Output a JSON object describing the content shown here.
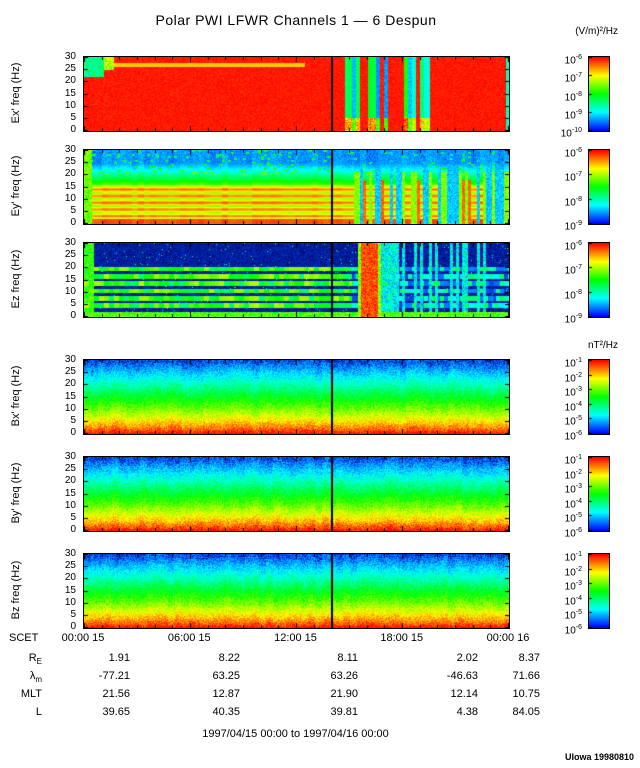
{
  "credit": "UIowa 19980810",
  "chart_data": {
    "type": "heatmap",
    "title": "Polar PWI LFWR Channels 1 — 6 Despun",
    "time_range_label": "1997/04/15 00:00 to 1997/04/16 00:00",
    "colormap": "rainbow blue=low red=high",
    "x_axis": {
      "name": "SCET",
      "tick_labels": [
        "00:00 15",
        "06:00 15",
        "12:00 15",
        "18:00 15",
        "00:00 16"
      ],
      "tick_hours": [
        0,
        6,
        12,
        18,
        24
      ],
      "minor_tick_interval_hours": 1,
      "range_hours": [
        0,
        24
      ]
    },
    "y_axis": {
      "ticks": [
        0,
        5,
        10,
        15,
        20,
        25,
        30
      ],
      "range": [
        0,
        30
      ],
      "unit": "Hz"
    },
    "marker_line_hour": 14,
    "unit_headers": {
      "electric": "(V/m)²/Hz",
      "magnetic": "nT²/Hz"
    },
    "panels": [
      {
        "id": "ex",
        "ylabel": "Ex' freq (Hz)",
        "units": "(V/m)²/Hz",
        "cbar_exponents": [
          -6,
          -7,
          -8,
          -9,
          -10
        ],
        "pattern": "efield-saturated",
        "description": "saturated intense broadband electric field, dropouts ~15:00-19:30"
      },
      {
        "id": "ey",
        "ylabel": "Ey' freq (Hz)",
        "units": "(V/m)²/Hz",
        "cbar_exponents": [
          -6,
          -7,
          -8,
          -9
        ],
        "pattern": "efield-banded",
        "description": "intense low-frequency band with striations, weaker above 20 Hz"
      },
      {
        "id": "ez",
        "ylabel": "Ez freq (Hz)",
        "units": "(V/m)²/Hz",
        "cbar_exponents": [
          -6,
          -7,
          -8,
          -9
        ],
        "pattern": "efield-lines",
        "description": "narrowband harmonic lines ~3 Hz spacing on weak background, intense burst ~16:30"
      },
      {
        "id": "bx",
        "ylabel": "Bx' freq (Hz)",
        "units": "nT²/Hz",
        "cbar_exponents": [
          -1,
          -2,
          -3,
          -4,
          -5,
          -6
        ],
        "pattern": "bfield",
        "description": "magnetic spectrum falling with frequency"
      },
      {
        "id": "by",
        "ylabel": "By' freq (Hz)",
        "units": "nT²/Hz",
        "cbar_exponents": [
          -1,
          -2,
          -3,
          -4,
          -5,
          -6
        ],
        "pattern": "bfield",
        "description": "magnetic spectrum falling with frequency"
      },
      {
        "id": "bz",
        "ylabel": "Bz freq (Hz)",
        "units": "nT²/Hz",
        "cbar_exponents": [
          -1,
          -2,
          -3,
          -4,
          -5,
          -6
        ],
        "pattern": "bfield",
        "description": "magnetic spectrum falling with frequency"
      }
    ],
    "ephemeris": {
      "rows": [
        {
          "label": "R",
          "sub": "E",
          "values": [
            "1.91",
            "8.22",
            "8.11",
            "2.02",
            "8.37"
          ]
        },
        {
          "label": "λ",
          "sub": "m",
          "values": [
            "-77.21",
            "63.25",
            "63.26",
            "-46.63",
            "71.66"
          ]
        },
        {
          "label": "MLT",
          "sub": "",
          "values": [
            "21.56",
            "12.87",
            "21.90",
            "12.14",
            "10.75"
          ]
        },
        {
          "label": "L",
          "sub": "",
          "values": [
            "39.65",
            "40.35",
            "39.81",
            "4.38",
            "84.05"
          ]
        }
      ]
    }
  }
}
